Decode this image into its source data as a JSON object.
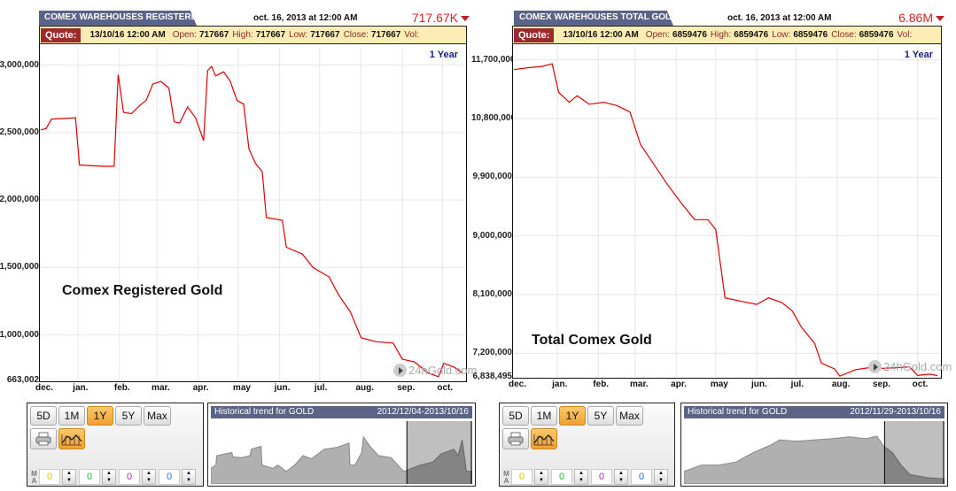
{
  "panels": [
    {
      "tab_title": "COMEX WAREHOUSES REGISTERED S",
      "date": "oct. 16, 2013 at 12:00 AM",
      "last": "717.67K",
      "quote": {
        "label": "Quote:",
        "datetime": "13/10/16 12:00 AM",
        "open_label": "Open:",
        "open": "717667",
        "high_label": "High:",
        "high": "717667",
        "low_label": "Low:",
        "low": "717667",
        "close_label": "Close:",
        "close": "717667",
        "vol_label": "Vol:"
      },
      "period_label": "1 Year",
      "annotation": "Comex Registered Gold",
      "watermark": "24hGold.com",
      "controls": {
        "ranges": [
          "5D",
          "1M",
          "1Y",
          "5Y",
          "Max"
        ],
        "active_range": "1Y",
        "print_icon": "printer-icon",
        "chart_type_icon": "line-chart-icon",
        "ma_label": "MA",
        "ma_values": [
          "0",
          "0",
          "0",
          "0"
        ],
        "ma_colors": [
          "#e0c000",
          "#20c040",
          "#b030b0",
          "#2070ff"
        ]
      },
      "navigator": {
        "title": "Historical trend for GOLD",
        "range": "2012/12/04-2013/10/16"
      }
    },
    {
      "tab_title": "COMEX WAREHOUSES TOTAL GOLD (C",
      "date": "oct. 16, 2013 at 12:00 AM",
      "last": "6.86M",
      "quote": {
        "label": "Quote:",
        "datetime": "13/10/16 12:00 AM",
        "open_label": "Open:",
        "open": "6859476",
        "high_label": "High:",
        "high": "6859476",
        "low_label": "Low:",
        "low": "6859476",
        "close_label": "Close:",
        "close": "6859476",
        "vol_label": "Vol:"
      },
      "period_label": "1 Year",
      "annotation": "Total Comex Gold",
      "watermark": "24hGold.com",
      "controls": {
        "ranges": [
          "5D",
          "1M",
          "1Y",
          "5Y",
          "Max"
        ],
        "active_range": "1Y",
        "print_icon": "printer-icon",
        "chart_type_icon": "line-chart-icon",
        "ma_label": "MA",
        "ma_values": [
          "0",
          "0",
          "0",
          "0"
        ],
        "ma_colors": [
          "#e0c000",
          "#20c040",
          "#b030b0",
          "#2070ff"
        ]
      },
      "navigator": {
        "title": "Historical trend for GOLD",
        "range": "2012/11/29-2013/10/16"
      }
    }
  ],
  "chart_data": [
    {
      "type": "line",
      "line_color": "#e00000",
      "grid": true,
      "yticks": [
        "3,000,000",
        "2,500,000",
        "2,000,000",
        "1,500,000",
        "1,000,000",
        "663,002"
      ],
      "ytick_values": [
        3000000,
        2500000,
        2000000,
        1500000,
        1000000,
        663002
      ],
      "ylim": [
        663002,
        3050000
      ],
      "xticks": [
        "dec.",
        "jan.",
        "feb.",
        "mar.",
        "apr.",
        "may",
        "jun.",
        "jul.",
        "aug.",
        "sep.",
        "oct."
      ],
      "xtick_dates": [
        "2012-12-04",
        "2013-01-01",
        "2013-02-01",
        "2013-03-01",
        "2013-04-01",
        "2013-05-01",
        "2013-06-01",
        "2013-07-01",
        "2013-08-01",
        "2013-09-01",
        "2013-10-01"
      ],
      "xlim": [
        "2012-12-04",
        "2013-10-18"
      ],
      "x": [
        "2012-12-04",
        "2012-12-08",
        "2012-12-12",
        "2012-12-30",
        "2013-01-02",
        "2013-01-20",
        "2013-01-28",
        "2013-01-31",
        "2013-02-04",
        "2013-02-10",
        "2013-02-16",
        "2013-02-21",
        "2013-02-26",
        "2013-03-04",
        "2013-03-10",
        "2013-03-14",
        "2013-03-18",
        "2013-03-24",
        "2013-03-30",
        "2013-04-05",
        "2013-04-08",
        "2013-04-11",
        "2013-04-14",
        "2013-04-20",
        "2013-04-25",
        "2013-04-30",
        "2013-05-05",
        "2013-05-09",
        "2013-05-14",
        "2013-05-19",
        "2013-05-22",
        "2013-06-03",
        "2013-06-06",
        "2013-06-18",
        "2013-06-26",
        "2013-07-08",
        "2013-07-15",
        "2013-07-24",
        "2013-08-01",
        "2013-08-12",
        "2013-08-25",
        "2013-09-01",
        "2013-09-10",
        "2013-09-20",
        "2013-09-28",
        "2013-10-02",
        "2013-10-10",
        "2013-10-16"
      ],
      "y": [
        2520000,
        2530000,
        2600000,
        2610000,
        2260000,
        2250000,
        2250000,
        2930000,
        2650000,
        2640000,
        2700000,
        2740000,
        2860000,
        2880000,
        2830000,
        2580000,
        2570000,
        2690000,
        2610000,
        2440000,
        2960000,
        2990000,
        2920000,
        2950000,
        2880000,
        2740000,
        2710000,
        2380000,
        2270000,
        2210000,
        1870000,
        1850000,
        1650000,
        1600000,
        1500000,
        1430000,
        1300000,
        1170000,
        980000,
        950000,
        940000,
        820000,
        800000,
        720000,
        690000,
        790000,
        760000,
        717667
      ]
    },
    {
      "type": "line",
      "line_color": "#e00000",
      "grid": true,
      "yticks": [
        "11,700,000",
        "10,800,000",
        "9,900,000",
        "9,000,000",
        "8,100,000",
        "7,200,000",
        "6,838,495"
      ],
      "ytick_values": [
        11700000,
        10800000,
        9900000,
        9000000,
        8100000,
        7200000,
        6838495
      ],
      "ylim": [
        6838495,
        11750000
      ],
      "xticks": [
        "dec.",
        "jan.",
        "feb.",
        "mar.",
        "apr.",
        "may",
        "jun.",
        "jul.",
        "aug.",
        "sep.",
        "oct."
      ],
      "xtick_dates": [
        "2012-11-29",
        "2013-01-01",
        "2013-02-01",
        "2013-03-01",
        "2013-04-01",
        "2013-05-01",
        "2013-06-01",
        "2013-07-01",
        "2013-08-01",
        "2013-09-01",
        "2013-10-01"
      ],
      "xlim": [
        "2012-11-29",
        "2013-10-18"
      ],
      "x": [
        "2012-11-29",
        "2012-12-10",
        "2012-12-20",
        "2012-12-28",
        "2013-01-02",
        "2013-01-10",
        "2013-01-16",
        "2013-01-25",
        "2013-02-05",
        "2013-02-15",
        "2013-02-25",
        "2013-03-05",
        "2013-03-15",
        "2013-03-25",
        "2013-04-05",
        "2013-04-15",
        "2013-04-25",
        "2013-05-01",
        "2013-05-05",
        "2013-05-08",
        "2013-05-20",
        "2013-06-01",
        "2013-06-10",
        "2013-06-20",
        "2013-06-28",
        "2013-07-05",
        "2013-07-15",
        "2013-07-20",
        "2013-07-30",
        "2013-08-03",
        "2013-08-15",
        "2013-08-25",
        "2013-09-05",
        "2013-09-15",
        "2013-09-25",
        "2013-10-01",
        "2013-10-10",
        "2013-10-16"
      ],
      "y": [
        11550000,
        11580000,
        11600000,
        11640000,
        11200000,
        11050000,
        11150000,
        11020000,
        11050000,
        11000000,
        10900000,
        10400000,
        10100000,
        9800000,
        9500000,
        9250000,
        9250000,
        9100000,
        8500000,
        8050000,
        8000000,
        7950000,
        8050000,
        7980000,
        7850000,
        7600000,
        7350000,
        7050000,
        6960000,
        6850000,
        6950000,
        6980000,
        6970000,
        6980000,
        6990000,
        6860000,
        6880000,
        6859476
      ]
    }
  ]
}
